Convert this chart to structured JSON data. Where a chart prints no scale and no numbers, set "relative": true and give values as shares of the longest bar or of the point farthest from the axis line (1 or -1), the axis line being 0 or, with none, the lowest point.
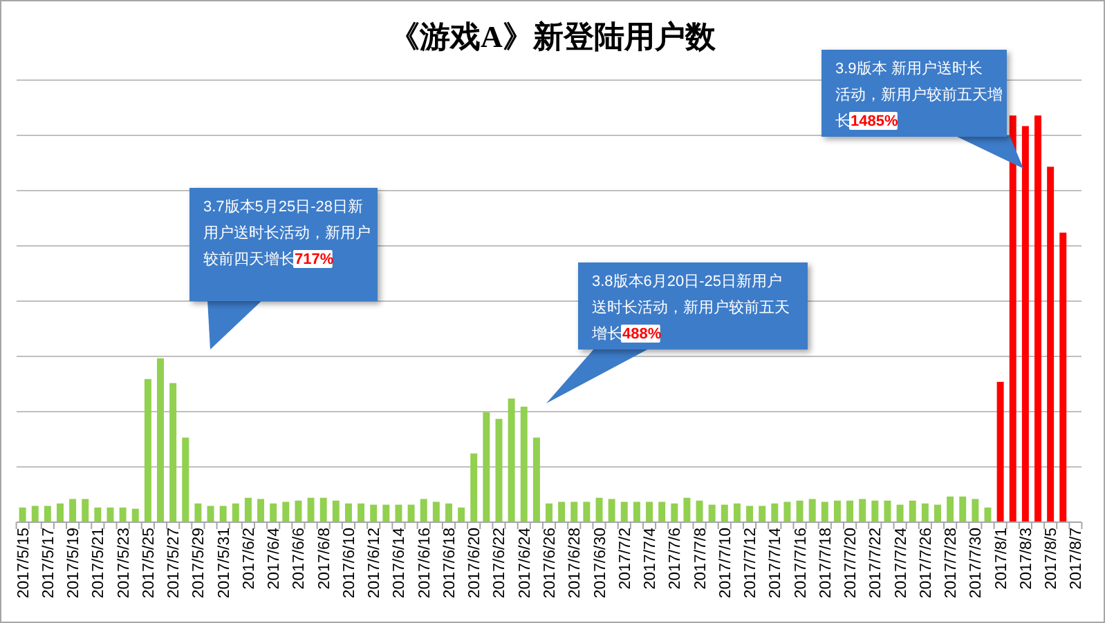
{
  "chart_data": {
    "type": "bar",
    "title": "《游戏A》新登陆用户数",
    "relative": true,
    "grid": "y",
    "categories": [
      "2017/5/15",
      null,
      "2017/5/17",
      null,
      "2017/5/19",
      null,
      "2017/5/21",
      null,
      "2017/5/23",
      null,
      "2017/5/25",
      null,
      "2017/5/27",
      null,
      "2017/5/29",
      null,
      "2017/5/31",
      null,
      "2017/6/2",
      null,
      "2017/6/4",
      null,
      "2017/6/6",
      null,
      "2017/6/8",
      null,
      "2017/6/10",
      null,
      "2017/6/12",
      null,
      "2017/6/14",
      null,
      "2017/6/16",
      null,
      "2017/6/18",
      null,
      "2017/6/20",
      null,
      "2017/6/22",
      null,
      "2017/6/24",
      null,
      "2017/6/26",
      null,
      "2017/6/28",
      null,
      "2017/6/30",
      null,
      "2017/7/2",
      null,
      "2017/7/4",
      null,
      "2017/7/6",
      null,
      "2017/7/8",
      null,
      "2017/7/10",
      null,
      "2017/7/12",
      null,
      "2017/7/14",
      null,
      "2017/7/16",
      null,
      "2017/7/18",
      null,
      "2017/7/20",
      null,
      "2017/7/22",
      null,
      "2017/7/24",
      null,
      "2017/7/26",
      null,
      "2017/7/28",
      null,
      "2017/7/30",
      null,
      "2017/8/1",
      null,
      "2017/8/3",
      null,
      "2017/8/5",
      null,
      "2017/8/7"
    ],
    "values": [
      0.036,
      0.04,
      0.04,
      0.046,
      0.057,
      0.057,
      0.036,
      0.036,
      0.036,
      0.033,
      0.352,
      0.403,
      0.342,
      0.208,
      0.046,
      0.04,
      0.04,
      0.046,
      0.06,
      0.057,
      0.046,
      0.05,
      0.053,
      0.06,
      0.06,
      0.053,
      0.046,
      0.046,
      0.043,
      0.043,
      0.043,
      0.043,
      0.057,
      0.05,
      0.046,
      0.036,
      0.169,
      0.27,
      0.254,
      0.304,
      0.284,
      0.208,
      0.046,
      0.05,
      0.05,
      0.05,
      0.06,
      0.057,
      0.05,
      0.05,
      0.05,
      0.05,
      0.046,
      0.06,
      0.053,
      0.043,
      0.043,
      0.046,
      0.04,
      0.04,
      0.046,
      0.05,
      0.053,
      0.057,
      0.05,
      0.053,
      0.053,
      0.057,
      0.053,
      0.053,
      0.043,
      0.053,
      0.046,
      0.043,
      0.063,
      0.063,
      0.057,
      0.036,
      0.345,
      1,
      0.974,
      1,
      0.874,
      0.712,
      null
    ],
    "colors": [
      "#92d050",
      "#92d050",
      "#92d050",
      "#92d050",
      "#92d050",
      "#92d050",
      "#92d050",
      "#92d050",
      "#92d050",
      "#92d050",
      "#92d050",
      "#92d050",
      "#92d050",
      "#92d050",
      "#92d050",
      "#92d050",
      "#92d050",
      "#92d050",
      "#92d050",
      "#92d050",
      "#92d050",
      "#92d050",
      "#92d050",
      "#92d050",
      "#92d050",
      "#92d050",
      "#92d050",
      "#92d050",
      "#92d050",
      "#92d050",
      "#92d050",
      "#92d050",
      "#92d050",
      "#92d050",
      "#92d050",
      "#92d050",
      "#92d050",
      "#92d050",
      "#92d050",
      "#92d050",
      "#92d050",
      "#92d050",
      "#92d050",
      "#92d050",
      "#92d050",
      "#92d050",
      "#92d050",
      "#92d050",
      "#92d050",
      "#92d050",
      "#92d050",
      "#92d050",
      "#92d050",
      "#92d050",
      "#92d050",
      "#92d050",
      "#92d050",
      "#92d050",
      "#92d050",
      "#92d050",
      "#92d050",
      "#92d050",
      "#92d050",
      "#92d050",
      "#92d050",
      "#92d050",
      "#92d050",
      "#92d050",
      "#92d050",
      "#92d050",
      "#92d050",
      "#92d050",
      "#92d050",
      "#92d050",
      "#92d050",
      "#92d050",
      "#92d050",
      "#92d050",
      "#ff0000",
      "#ff0000",
      "#ff0000",
      "#ff0000",
      "#ff0000",
      "#ff0000",
      "#ff0000"
    ],
    "annotations": [
      "3.7版本5月25日-28日新用户送时长活动，新用户较前四天增长717%",
      "3.8版本6月20日-25日新用户送时长活动，新用户较前五天增长488%",
      "3.9版本  新用户送时长活动，新用户较前五天增长1485%"
    ]
  }
}
